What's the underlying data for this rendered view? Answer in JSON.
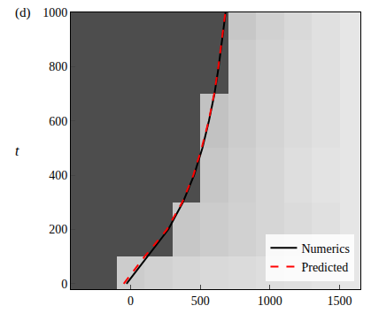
{
  "chart_data": {
    "type": "line",
    "panel_label": "(d)",
    "y_label": "t",
    "series": [
      {
        "name": "Numerics",
        "color": "#000000",
        "line_style": "solid",
        "x": [
          -30,
          120,
          270,
          375,
          455,
          515,
          562,
          602,
          632,
          657,
          682
        ],
        "y": [
          0,
          100,
          200,
          300,
          400,
          500,
          600,
          700,
          800,
          900,
          1000
        ]
      },
      {
        "name": "Predicted",
        "color": "#ff0000",
        "line_style": "dash",
        "x": [
          -50,
          100,
          260,
          370,
          450,
          510,
          560,
          600,
          630,
          655,
          680
        ],
        "y": [
          0,
          100,
          200,
          300,
          400,
          500,
          600,
          700,
          800,
          900,
          1000
        ]
      }
    ],
    "heatmap": {
      "x": [
        -400,
        -200,
        0,
        200,
        400,
        600,
        800,
        1000,
        1200,
        1400,
        1600
      ],
      "y": [
        0,
        200,
        400,
        600,
        800,
        1000
      ],
      "z": [
        [
          0.3,
          0.3,
          0.8,
          0.82,
          0.84,
          0.85,
          0.86,
          0.87,
          0.88,
          0.89,
          0.9
        ],
        [
          0.3,
          0.3,
          0.3,
          0.3,
          0.78,
          0.8,
          0.82,
          0.84,
          0.86,
          0.88,
          0.9
        ],
        [
          0.3,
          0.3,
          0.3,
          0.3,
          0.3,
          0.78,
          0.81,
          0.84,
          0.87,
          0.89,
          0.9
        ],
        [
          0.3,
          0.3,
          0.3,
          0.3,
          0.3,
          0.76,
          0.8,
          0.83,
          0.86,
          0.88,
          0.9
        ],
        [
          0.3,
          0.3,
          0.3,
          0.3,
          0.3,
          0.3,
          0.8,
          0.83,
          0.86,
          0.88,
          0.9
        ],
        [
          0.3,
          0.3,
          0.3,
          0.3,
          0.3,
          0.3,
          0.78,
          0.82,
          0.85,
          0.88,
          0.9
        ]
      ]
    },
    "xlim": [
      -430,
      1650
    ],
    "ylim": [
      -20,
      1000
    ],
    "xticks": [
      0,
      500,
      1000,
      1500
    ],
    "yticks": [
      0,
      200,
      400,
      600,
      800,
      1000
    ],
    "legend": "bottom right"
  }
}
